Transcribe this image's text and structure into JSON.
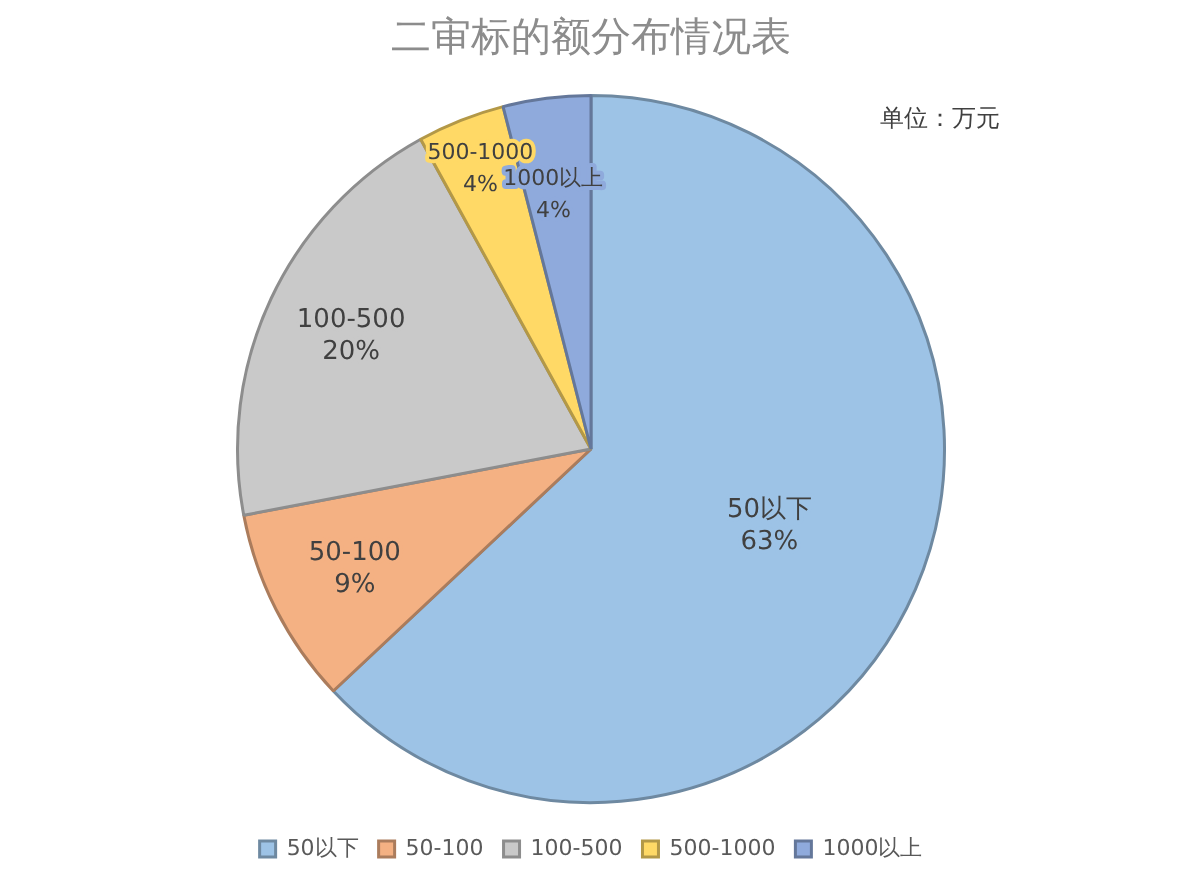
{
  "chart_data": {
    "type": "pie",
    "title": "二审标的额分布情况表",
    "annotations": [
      "单位：万元"
    ],
    "categories": [
      "50以下",
      "50-100",
      "100-500",
      "500-1000",
      "1000以上"
    ],
    "values": [
      63,
      9,
      20,
      4,
      4
    ],
    "value_labels": [
      "63%",
      "9%",
      "20%",
      "4%",
      "4%"
    ],
    "colors": [
      "#9dc3e6",
      "#f4b183",
      "#c9c9c9",
      "#ffd966",
      "#8faadc"
    ],
    "legend": "bottom"
  }
}
